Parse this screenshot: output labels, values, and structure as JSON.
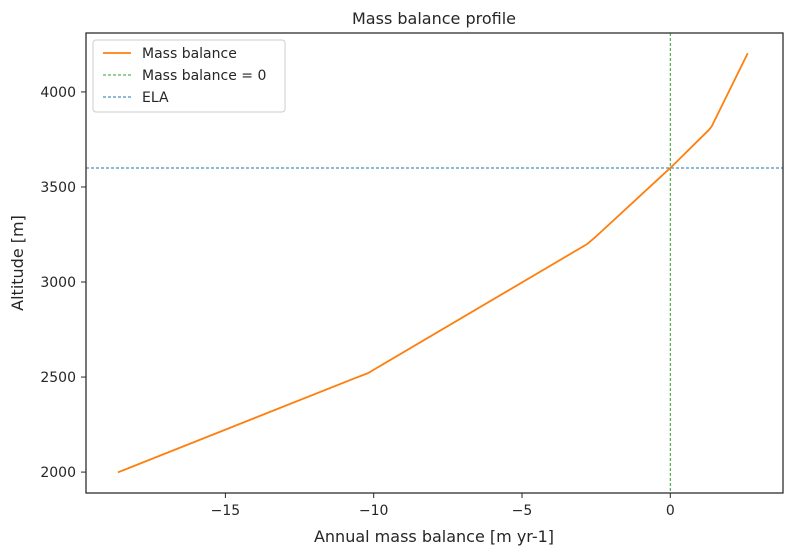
{
  "chart_data": {
    "type": "line",
    "title": "Mass balance profile",
    "xlabel": "Annual mass balance [m yr-1]",
    "ylabel": "Altitude [m]",
    "xlim": [
      -19.7,
      3.8
    ],
    "ylim": [
      1890,
      4310
    ],
    "xticks": [
      -15,
      -10,
      -5,
      0
    ],
    "xtick_labels": [
      "−15",
      "−10",
      "−5",
      "0"
    ],
    "yticks": [
      2000,
      2500,
      3000,
      3500,
      4000
    ],
    "ytick_labels": [
      "2000",
      "2500",
      "3000",
      "3500",
      "4000"
    ],
    "series": [
      {
        "name": "Mass balance",
        "color": "#ff7f0e",
        "style": "solid",
        "x": [
          -18.6,
          -10.7,
          -10.2,
          -2.8,
          -2.5,
          0.0,
          1.3,
          1.4,
          2.6
        ],
        "y": [
          2000,
          2490,
          2520,
          3200,
          3240,
          3600,
          3800,
          3820,
          4200
        ]
      }
    ],
    "reference_lines": [
      {
        "name": "Mass balance = 0",
        "orientation": "vertical",
        "value": 0,
        "color": "#2ca02c",
        "style": "dashed"
      },
      {
        "name": "ELA",
        "orientation": "horizontal",
        "value": 3600,
        "color": "#1f77b4",
        "style": "dashed"
      }
    ],
    "legend": {
      "position": "top-left",
      "entries": [
        "Mass balance",
        "Mass balance = 0",
        "ELA"
      ]
    },
    "grid": false
  }
}
